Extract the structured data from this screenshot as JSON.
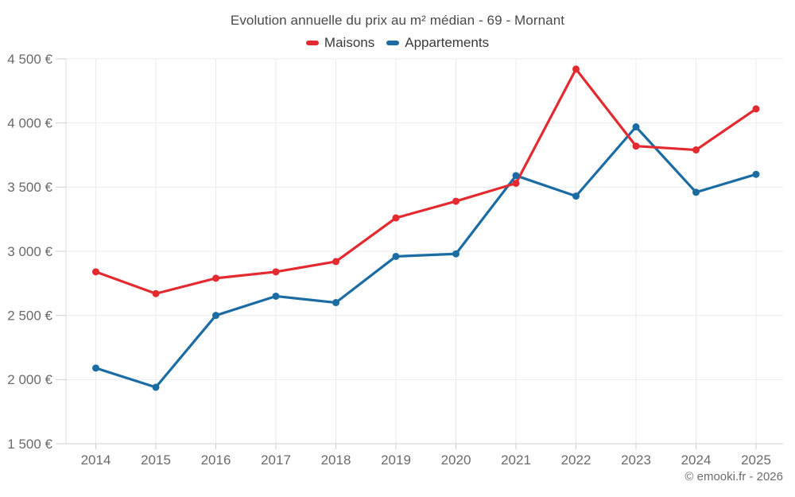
{
  "title": "Evolution annuelle du prix au m² médian - 69 - Mornant",
  "legend": {
    "items": [
      {
        "label": "Maisons",
        "color": "#e22a30"
      },
      {
        "label": "Appartements",
        "color": "#1b6ca3"
      }
    ]
  },
  "watermark": "© emooki.fr - 2026",
  "colors": {
    "maisons": "#e22a30",
    "appartements": "#1b6ca3",
    "gridline": "#ebebeb",
    "axis_line": "#cfcfcf",
    "plot_border": "#dedede",
    "axis_label": "#6a6a6a",
    "title_text": "#4a4a4a"
  },
  "chart_data": {
    "type": "line",
    "title": "Evolution annuelle du prix au m² médian - 69 - Mornant",
    "x": [
      2014,
      2015,
      2016,
      2017,
      2018,
      2019,
      2020,
      2021,
      2022,
      2023,
      2024,
      2025
    ],
    "xtick_labels": [
      "2014",
      "2015",
      "2016",
      "2017",
      "2018",
      "2019",
      "2020",
      "2021",
      "2022",
      "2023",
      "2024",
      "2025"
    ],
    "series": [
      {
        "name": "Maisons",
        "color": "#e22a30",
        "values": [
          2840,
          2670,
          2790,
          2840,
          2920,
          3260,
          3390,
          3530,
          4420,
          3820,
          3790,
          4110
        ]
      },
      {
        "name": "Appartements",
        "color": "#1b6ca3",
        "values": [
          2090,
          1940,
          2500,
          2650,
          2600,
          2960,
          2980,
          3590,
          3430,
          3970,
          3460,
          3600
        ]
      }
    ],
    "ylim": [
      1500,
      4500
    ],
    "ytick_step": 500,
    "ytick_values": [
      1500,
      2000,
      2500,
      3000,
      3500,
      4000,
      4500
    ],
    "ytick_labels": [
      "1 500 €",
      "2 000 €",
      "2 500 €",
      "3 000 €",
      "3 500 €",
      "4 000 €",
      "4 500 €"
    ],
    "ylabel": "",
    "xlabel": "",
    "grid": true,
    "legend_position": "top",
    "annotation": "© emooki.fr - 2026"
  }
}
